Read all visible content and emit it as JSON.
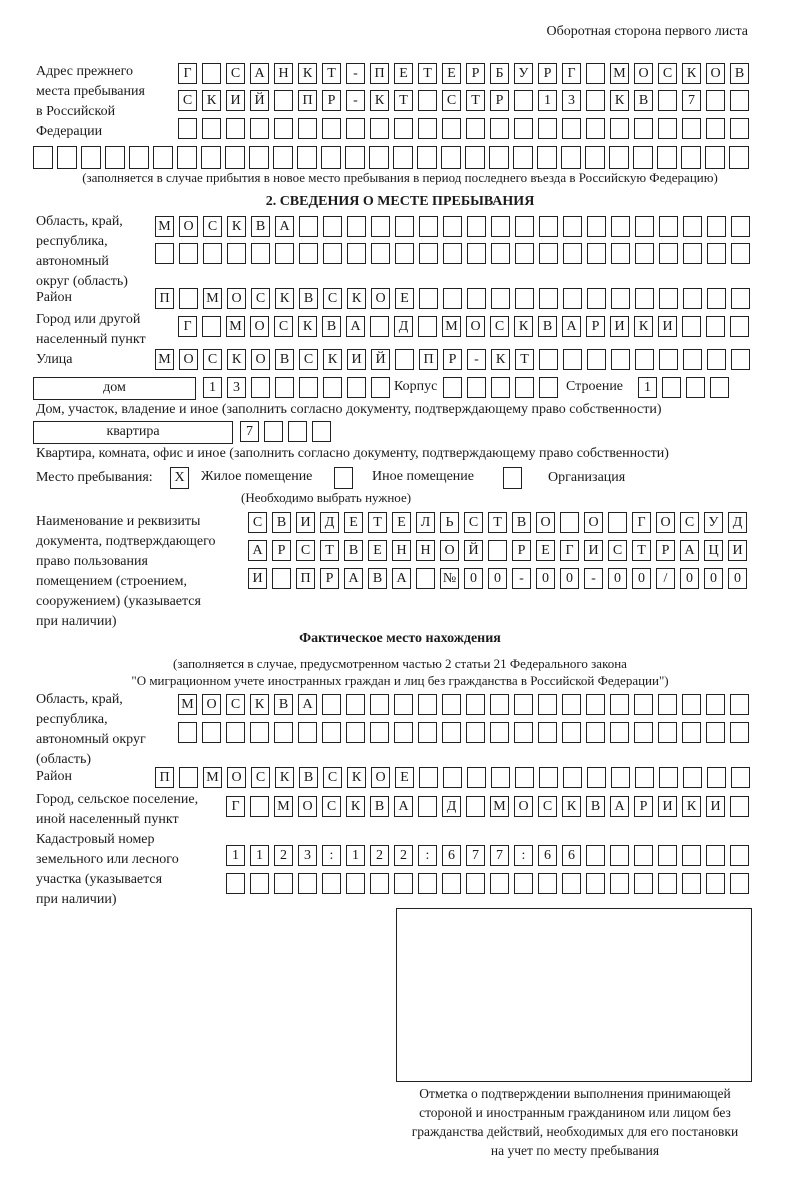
{
  "header": {
    "page_side": "Оборотная сторона первого листа"
  },
  "previous_address": {
    "label": "Адрес прежнего\nместа пребывания\nв Российской\nФедерации",
    "rows": [
      [
        "Г",
        "",
        "С",
        "А",
        "Н",
        "К",
        "Т",
        "-",
        "П",
        "Е",
        "Т",
        "Е",
        "Р",
        "Б",
        "У",
        "Р",
        "Г",
        "",
        "М",
        "О",
        "С",
        "К",
        "О",
        "В"
      ],
      [
        "С",
        "К",
        "И",
        "Й",
        "",
        "П",
        "Р",
        "-",
        "К",
        "Т",
        "",
        "С",
        "Т",
        "Р",
        "",
        "1",
        "3",
        "",
        "К",
        "В",
        "",
        "7",
        "",
        ""
      ],
      [
        "",
        "",
        "",
        "",
        "",
        "",
        "",
        "",
        "",
        "",
        "",
        "",
        "",
        "",
        "",
        "",
        "",
        "",
        "",
        "",
        "",
        "",
        "",
        ""
      ],
      [
        "",
        "",
        "",
        "",
        "",
        "",
        "",
        "",
        "",
        "",
        "",
        "",
        "",
        "",
        "",
        "",
        "",
        "",
        "",
        "",
        "",
        "",
        "",
        "",
        "",
        "",
        "",
        "",
        "",
        ""
      ]
    ],
    "note": "(заполняется в случае прибытия в новое место пребывания в период последнего въезда в Российскую Федерацию)"
  },
  "section2": {
    "title": "2. СВЕДЕНИЯ О МЕСТЕ ПРЕБЫВАНИЯ",
    "region_label": "Область, край,\nреспублика,\nавтономный\nокруг (область)",
    "region_rows": [
      [
        "М",
        "О",
        "С",
        "К",
        "В",
        "А",
        "",
        "",
        "",
        "",
        "",
        "",
        "",
        "",
        "",
        "",
        "",
        "",
        "",
        "",
        "",
        "",
        "",
        "",
        ""
      ],
      [
        "",
        "",
        "",
        "",
        "",
        "",
        "",
        "",
        "",
        "",
        "",
        "",
        "",
        "",
        "",
        "",
        "",
        "",
        "",
        "",
        "",
        "",
        "",
        "",
        ""
      ]
    ],
    "district_label": "Район",
    "district_row": [
      "П",
      "",
      "М",
      "О",
      "С",
      "К",
      "В",
      "С",
      "К",
      "О",
      "Е",
      "",
      "",
      "",
      "",
      "",
      "",
      "",
      "",
      "",
      "",
      "",
      "",
      "",
      ""
    ],
    "city_label": "Город или другой\nнаселенный пункт",
    "city_row": [
      "Г",
      "",
      "М",
      "О",
      "С",
      "К",
      "В",
      "А",
      "",
      "Д",
      "",
      "М",
      "О",
      "С",
      "К",
      "В",
      "А",
      "Р",
      "И",
      "К",
      "И",
      "",
      "",
      ""
    ],
    "street_label": "Улица",
    "street_row": [
      "М",
      "О",
      "С",
      "К",
      "О",
      "В",
      "С",
      "К",
      "И",
      "Й",
      "",
      "П",
      "Р",
      "-",
      "К",
      "Т",
      "",
      "",
      "",
      "",
      "",
      "",
      "",
      "",
      ""
    ],
    "house_type": "дом",
    "house_cells": [
      "1",
      "3",
      "",
      "",
      "",
      "",
      "",
      ""
    ],
    "korpus_label": "Корпус",
    "korpus_cells": [
      "",
      "",
      "",
      "",
      ""
    ],
    "building_label": "Строение",
    "building_cells": [
      "1",
      "",
      "",
      ""
    ],
    "house_note": "Дом, участок, владение и иное (заполнить согласно документу, подтверждающему право собственности)",
    "apartment_type": "квартира",
    "apartment_cells": [
      "7",
      "",
      "",
      ""
    ],
    "apartment_note": "Квартира, комната, офис и иное (заполнить согласно документу, подтверждающему право собственности)",
    "stay_place_label": "Место пребывания:",
    "stay_options": [
      {
        "label": "Жилое помещение",
        "mark": "X"
      },
      {
        "label": "Иное помещение",
        "mark": ""
      },
      {
        "label": "Организация",
        "mark": ""
      }
    ],
    "stay_note": "(Необходимо выбрать нужное)",
    "document_label": "Наименование и реквизиты\nдокумента, подтверждающего\nправо пользования\nпомещением (строением,\nсооружением) (указывается\nпри наличии)",
    "document_rows": [
      [
        "С",
        "В",
        "И",
        "Д",
        "Е",
        "Т",
        "Е",
        "Л",
        "Ь",
        "С",
        "Т",
        "В",
        "О",
        "",
        "О",
        "",
        "Г",
        "О",
        "С",
        "У",
        "Д"
      ],
      [
        "А",
        "Р",
        "С",
        "Т",
        "В",
        "Е",
        "Н",
        "Н",
        "О",
        "Й",
        "",
        "Р",
        "Е",
        "Г",
        "И",
        "С",
        "Т",
        "Р",
        "А",
        "Ц",
        "И"
      ],
      [
        "И",
        "",
        "П",
        "Р",
        "А",
        "В",
        "А",
        "",
        "№",
        "0",
        "0",
        "-",
        "0",
        "0",
        "-",
        "0",
        "0",
        "/",
        "0",
        "0",
        "0"
      ]
    ]
  },
  "actual": {
    "title": "Фактическое место нахождения",
    "note1": "(заполняется в случае, предусмотренном частью 2 статьи 21 Федерального закона",
    "note2": "\"О миграционном учете иностранных граждан и лиц без гражданства в Российской Федерации\")",
    "region_label": "Область, край,\nреспублика,\nавтономный округ\n(область)",
    "region_rows": [
      [
        "М",
        "О",
        "С",
        "К",
        "В",
        "А",
        "",
        "",
        "",
        "",
        "",
        "",
        "",
        "",
        "",
        "",
        "",
        "",
        "",
        "",
        "",
        "",
        "",
        ""
      ],
      [
        "",
        "",
        "",
        "",
        "",
        "",
        "",
        "",
        "",
        "",
        "",
        "",
        "",
        "",
        "",
        "",
        "",
        "",
        "",
        "",
        "",
        "",
        "",
        ""
      ]
    ],
    "district_label": "Район",
    "district_row": [
      "П",
      "",
      "М",
      "О",
      "С",
      "К",
      "В",
      "С",
      "К",
      "О",
      "Е",
      "",
      "",
      "",
      "",
      "",
      "",
      "",
      "",
      "",
      "",
      "",
      "",
      "",
      ""
    ],
    "city_label": "Город, сельское поселение,\nиной населенный пункт",
    "city_row": [
      "Г",
      "",
      "М",
      "О",
      "С",
      "К",
      "В",
      "А",
      "",
      "Д",
      "",
      "М",
      "О",
      "С",
      "К",
      "В",
      "А",
      "Р",
      "И",
      "К",
      "И",
      ""
    ],
    "cadastral_label": "Кадастровый номер\nземельного или лесного\nучастка (указывается\nпри наличии)",
    "cadastral_rows": [
      [
        "1",
        "1",
        "2",
        "3",
        ":",
        "1",
        "2",
        "2",
        ":",
        "6",
        "7",
        "7",
        ":",
        "6",
        "6",
        "",
        "",
        "",
        "",
        "",
        "",
        ""
      ],
      [
        "",
        "",
        "",
        "",
        "",
        "",
        "",
        "",
        "",
        "",
        "",
        "",
        "",
        "",
        "",
        "",
        "",
        "",
        "",
        "",
        "",
        ""
      ]
    ]
  },
  "confirmation": {
    "caption": "Отметка о подтверждении выполнения принимающей\nстороной и иностранным гражданином или лицом без\nгражданства действий, необходимых для его постановки\nна учет по месту пребывания"
  }
}
